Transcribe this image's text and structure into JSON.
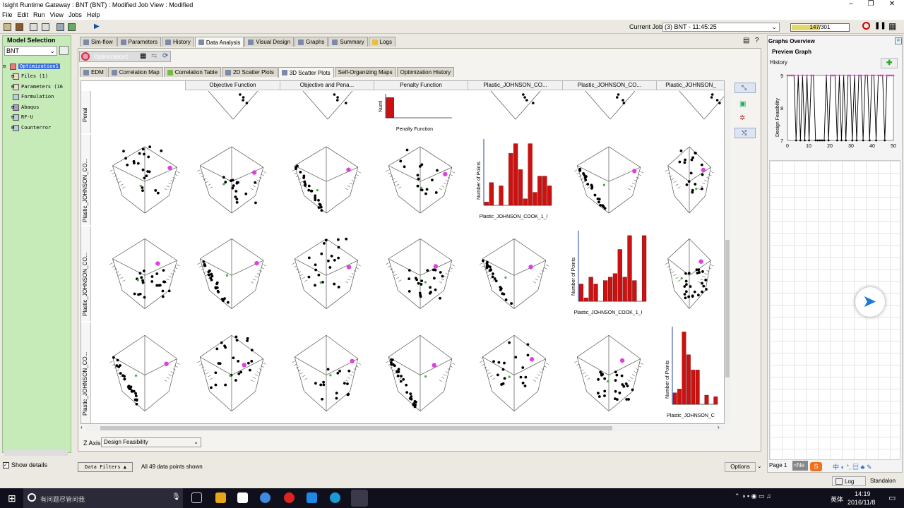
{
  "window": {
    "title": "Isight Runtime Gateway : BNT (BNT)  : Modified Job View : Modified"
  },
  "menu": [
    "File",
    "Edit",
    "Run",
    "View",
    "Jobs",
    "Help"
  ],
  "toolbar": {
    "current_job_label": "Current Job",
    "current_job_value": "(3) BNT - 11:45:25",
    "progress_text": "147/301",
    "progress_fraction": 0.49
  },
  "left": {
    "title": "Model Selection",
    "model": "BNT",
    "tree": [
      "Optimization1",
      "Files (1)",
      "Parameters (16",
      "Formulation",
      "Abaqus",
      "RF-U",
      "Counterror"
    ],
    "show_details": "Show details"
  },
  "tabs": [
    "Sim-flow",
    "Parameters",
    "History",
    "Data Analysis",
    "Visual Design",
    "Graphs",
    "Summary",
    "Logs"
  ],
  "active_tab": "Data Analysis",
  "opt_label": "Optimization1",
  "subtabs": [
    "EDM",
    "Correlation Map",
    "Correlation Table",
    "2D Scatter Plots",
    "3D Scatter Plots",
    "Self-Organizing Maps",
    "Optimization History"
  ],
  "active_subtab": "3D Scatter Plots",
  "grid": {
    "columns": [
      "Objective Function",
      "Objective and Pena...",
      "Penalty Function",
      "Plastic_JOHNSON_CO...",
      "Plastic_JOHNSON_CO...",
      "Plastic_JOHNSON_"
    ],
    "rows": [
      "Penal",
      "Plastic_JOHNSON_CO...",
      "Plastic_JOHNSON_CO...",
      "Plastic_JOHNSON_CO..."
    ],
    "hist_xlabels": [
      "Penalty Function",
      "Plastic_JOHNSON_COOK_1_/",
      "Plastic_JOHNSON_COOK_1_I",
      "Plastic_JOHNSON_C"
    ],
    "hist_ylabel": "Number of Points",
    "hist_ylabel_short": "Numl"
  },
  "zaxis": {
    "label": "Z Axis",
    "value": "Design Feasibility"
  },
  "status": {
    "filters": "Data Filters",
    "points": "All 49 data points shown",
    "options": "Options"
  },
  "right": {
    "title": "Graphs Overview",
    "preview": "Preview Graph",
    "history": "History",
    "ylabel": "Design Feasibility",
    "yticks": [
      "9",
      "8",
      "7"
    ],
    "xticks": [
      "0",
      "10",
      "20",
      "30",
      "40",
      "50"
    ],
    "page": "Page 1",
    "page_next": "<Ne",
    "log": "Log",
    "standalone": "Standalon"
  },
  "taskbar": {
    "search": "有问题尽管问我",
    "time": "14:19",
    "date": "2016/11/8",
    "ime": "英体"
  },
  "colors": {
    "panel_green": "#c6ebb9",
    "bar_red": "#cc1111",
    "highlight": "#e040e0",
    "accent_green": "#44aa44"
  }
}
